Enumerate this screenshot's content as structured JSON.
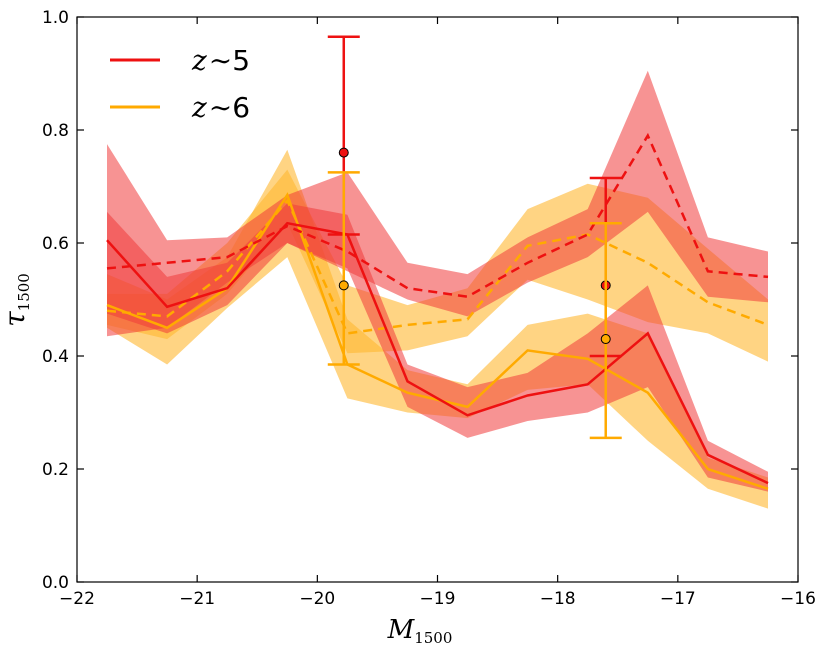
{
  "chart_data": {
    "type": "line",
    "xlabel": "M",
    "xlabel_sub": "1500",
    "ylabel": "τ",
    "ylabel_sub": "1500",
    "xlim": [
      -22,
      -16
    ],
    "ylim": [
      0.0,
      1.0
    ],
    "xticks": [
      -22,
      -21,
      -20,
      -19,
      -18,
      -17,
      -16
    ],
    "xtick_labels": [
      "−22",
      "−21",
      "−20",
      "−19",
      "−18",
      "−17",
      "−16"
    ],
    "yticks": [
      0.0,
      0.2,
      0.4,
      0.6,
      0.8,
      1.0
    ],
    "ytick_labels": [
      "0.0",
      "0.2",
      "0.4",
      "0.6",
      "0.8",
      "1.0"
    ],
    "grid": false,
    "legend_position": "top-left",
    "x": [
      -21.75,
      -21.25,
      -20.75,
      -20.25,
      -19.75,
      -19.25,
      -18.75,
      -18.25,
      -17.75,
      -17.25,
      -16.75,
      -16.25
    ],
    "series": [
      {
        "name": "z∼5",
        "legend_z": "z",
        "legend_num": "5",
        "color": "#ee1111",
        "band_color": "#f03a3a",
        "solid": {
          "values": [
            0.605,
            0.487,
            0.52,
            0.635,
            0.615,
            0.355,
            0.295,
            0.33,
            0.35,
            0.44,
            0.225,
            0.175
          ],
          "upper": [
            0.655,
            0.54,
            0.565,
            0.67,
            0.65,
            0.385,
            0.345,
            0.37,
            0.44,
            0.525,
            0.25,
            0.195
          ],
          "lower": [
            0.475,
            0.44,
            0.49,
            0.6,
            0.555,
            0.31,
            0.255,
            0.285,
            0.3,
            0.345,
            0.185,
            0.16
          ]
        },
        "dashed": {
          "values": [
            0.555,
            0.565,
            0.575,
            0.63,
            0.585,
            0.52,
            0.505,
            0.565,
            0.615,
            0.79,
            0.55,
            0.54
          ],
          "upper": [
            0.775,
            0.605,
            0.61,
            0.685,
            0.725,
            0.565,
            0.545,
            0.61,
            0.66,
            0.905,
            0.61,
            0.585
          ],
          "lower": [
            0.435,
            0.45,
            0.53,
            0.6,
            0.55,
            0.5,
            0.47,
            0.53,
            0.575,
            0.655,
            0.505,
            0.495
          ]
        },
        "points": [
          {
            "x": -19.78,
            "y": 0.76,
            "yerr_upper": 0.965,
            "yerr_lower": 0.615
          },
          {
            "x": -17.6,
            "y": 0.525,
            "yerr_upper": 0.715,
            "yerr_lower": 0.4
          }
        ]
      },
      {
        "name": "z∼6",
        "legend_z": "z",
        "legend_num": "6",
        "color": "#ffaa00",
        "band_color": "#ffb830",
        "solid": {
          "values": [
            0.49,
            0.45,
            0.52,
            0.685,
            0.385,
            0.335,
            0.31,
            0.41,
            0.395,
            0.335,
            0.2,
            0.165
          ],
          "upper": [
            0.545,
            0.5,
            0.575,
            0.765,
            0.465,
            0.375,
            0.35,
            0.455,
            0.475,
            0.44,
            0.22,
            0.185
          ],
          "lower": [
            0.45,
            0.385,
            0.485,
            0.575,
            0.325,
            0.3,
            0.29,
            0.34,
            0.35,
            0.25,
            0.165,
            0.13
          ]
        },
        "dashed": {
          "values": [
            0.48,
            0.47,
            0.55,
            0.675,
            0.44,
            0.455,
            0.465,
            0.595,
            0.615,
            0.565,
            0.495,
            0.455
          ],
          "upper": [
            0.51,
            0.51,
            0.6,
            0.73,
            0.525,
            0.49,
            0.52,
            0.66,
            0.705,
            0.68,
            0.59,
            0.5
          ],
          "lower": [
            0.455,
            0.43,
            0.51,
            0.635,
            0.405,
            0.41,
            0.435,
            0.535,
            0.5,
            0.46,
            0.44,
            0.39
          ]
        },
        "points": [
          {
            "x": -19.78,
            "y": 0.525,
            "yerr_upper": 0.725,
            "yerr_lower": 0.385
          },
          {
            "x": -17.6,
            "y": 0.43,
            "yerr_upper": 0.635,
            "yerr_lower": 0.255
          }
        ]
      }
    ]
  }
}
